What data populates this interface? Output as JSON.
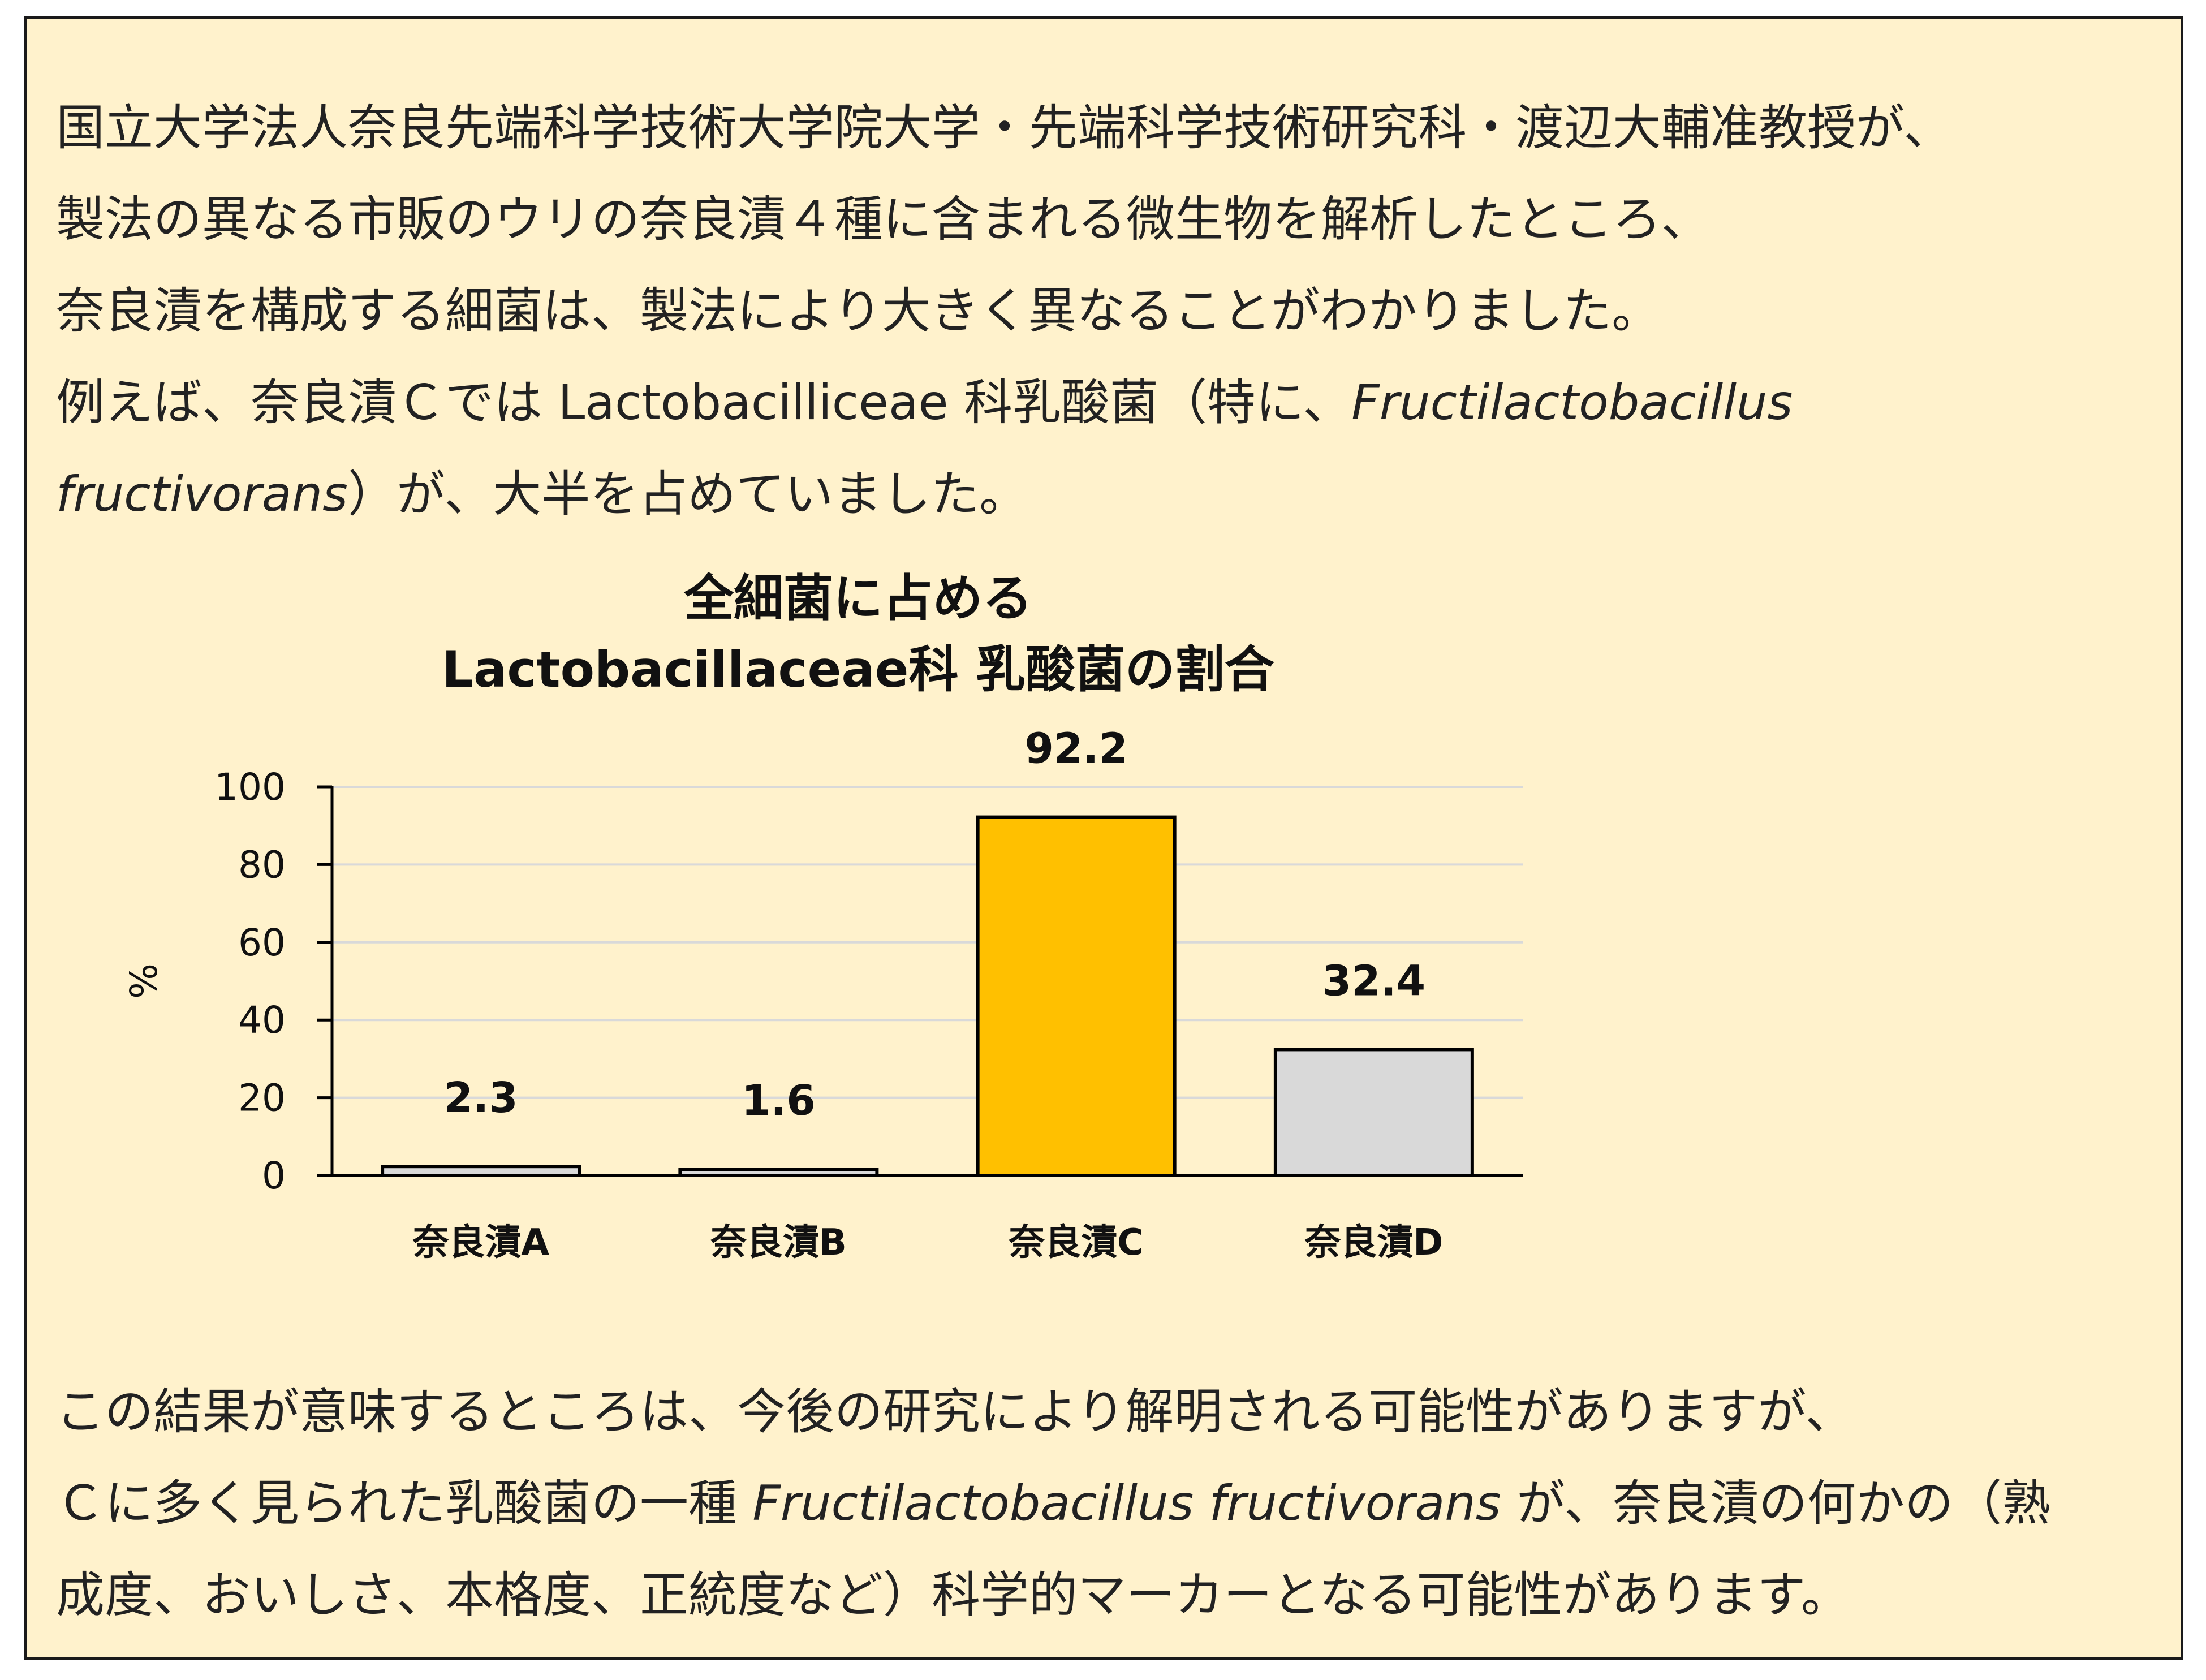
{
  "intro": {
    "line1": "国立大学法人奈良先端科学技術大学院大学・先端科学技術研究科・渡辺大輔准教授が、",
    "line2": "製法の異なる市販のウリの奈良漬４種に含まれる微生物を解析したところ、",
    "line3": "奈良漬を構成する細菌は、製法により大きく異なることがわかりました。",
    "line4_prefix": "例えば、奈良漬Ｃでは Lactobacilliceae  科乳酸菌（特に、",
    "line4_italic": "Fructilactobacillus",
    "line5_italic": "fructivorans",
    "line5_suffix": "）が、大半を占めていました。"
  },
  "outro": {
    "line1": "この結果が意味するところは、今後の研究により解明される可能性がありますが、",
    "line2_prefix": "Ｃに多く見られた乳酸菌の一種 ",
    "line2_italic": "Fructilactobacillus fructivorans",
    "line2_suffix": " が、奈良漬の何かの（熟",
    "line3": "成度、おいしさ、本格度、正統度など）科学的マーカーとなる可能性があります。"
  },
  "chart_data": {
    "type": "bar",
    "title_line1": "全細菌に占める",
    "title_line2": "Lactobacillaceae科 乳酸菌の割合",
    "xlabel": "",
    "ylabel": "%",
    "ylim": [
      0,
      100
    ],
    "yticks": [
      "0",
      "20",
      "40",
      "60",
      "80",
      "100"
    ],
    "grid": true,
    "categories": [
      "奈良漬A",
      "奈良漬B",
      "奈良漬C",
      "奈良漬D"
    ],
    "values": [
      2.3,
      1.6,
      92.2,
      32.4
    ],
    "value_labels": [
      "2.3",
      "1.6",
      "92.2",
      "32.4"
    ],
    "colors": [
      "#d9d9d9",
      "#d9d9d9",
      "#ffc000",
      "#d9d9d9"
    ]
  },
  "colors": {
    "panel_background": "#fff2cc",
    "gridline": "#d9d9d9",
    "axis": "#000000"
  }
}
